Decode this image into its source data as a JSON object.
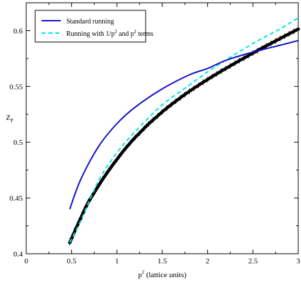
{
  "chart_data": {
    "type": "line",
    "title": "",
    "xlabel": {
      "base": "p",
      "sup": "2",
      "rest": " (lattice units)"
    },
    "ylabel": {
      "base": "Z",
      "sub": "P"
    },
    "xlim": [
      0,
      3
    ],
    "ylim": [
      0.4,
      0.625
    ],
    "x_ticks": [
      0,
      0.5,
      1,
      1.5,
      2,
      2.5,
      3
    ],
    "x_tick_labels": [
      "0",
      "0.5",
      "1",
      "1.5",
      "2",
      "2.5",
      "3"
    ],
    "y_ticks": [
      0.4,
      0.45,
      0.5,
      0.55,
      0.6
    ],
    "y_tick_labels": [
      "0.4",
      "0.45",
      "0.5",
      "0.55",
      "0.6"
    ],
    "grid": false,
    "legend_position": "top-left",
    "series": [
      {
        "name": "Standard running",
        "legend_label": "Standard running",
        "style": "solid",
        "color": "#1010c8",
        "x": [
          0.48,
          0.6,
          0.8,
          1.0,
          1.2,
          1.5,
          1.8,
          2.0,
          2.2,
          2.5,
          2.8,
          3.0
        ],
        "y": [
          0.44,
          0.4664,
          0.4964,
          0.5166,
          0.5313,
          0.5478,
          0.5604,
          0.5661,
          0.5733,
          0.5808,
          0.5869,
          0.5911
        ]
      },
      {
        "name": "Running with 1/p2 and p2 terms",
        "legend_label": {
          "pre": "Running with 1/p",
          "sup1": "2",
          "mid": " and p",
          "sup2": "2",
          "post": " terms"
        },
        "style": "dashed",
        "color": "#00e5e5",
        "x": [
          0.48,
          0.6,
          0.8,
          1.0,
          1.2,
          1.5,
          1.8,
          2.0,
          2.2,
          2.5,
          2.8,
          3.0
        ],
        "y": [
          0.41,
          0.4292,
          0.4659,
          0.4906,
          0.5094,
          0.5334,
          0.5512,
          0.5631,
          0.5735,
          0.5885,
          0.6016,
          0.6115
        ]
      },
      {
        "name": "lattice data",
        "style": "markers",
        "color": "#000000",
        "x": [
          0.48,
          0.5,
          0.52,
          0.55,
          0.58,
          0.6,
          0.63,
          0.66,
          0.7,
          0.73,
          0.76,
          0.8,
          0.83,
          0.86,
          0.9,
          0.93,
          0.96,
          1.0,
          1.05,
          1.1,
          1.15,
          1.2,
          1.25,
          1.3,
          1.35,
          1.4,
          1.45,
          1.5,
          1.55,
          1.6,
          1.65,
          1.7,
          1.75,
          1.8,
          1.85,
          1.9,
          1.95,
          2.0,
          2.05,
          2.1,
          2.15,
          2.2,
          2.25,
          2.3,
          2.35,
          2.4,
          2.45,
          2.5,
          2.55,
          2.6,
          2.65,
          2.7,
          2.75,
          2.8,
          2.85,
          2.9,
          2.95,
          3.0
        ],
        "y": [
          0.41,
          0.4136,
          0.4173,
          0.4229,
          0.4281,
          0.4317,
          0.4371,
          0.4423,
          0.4483,
          0.4522,
          0.4562,
          0.4613,
          0.4652,
          0.4688,
          0.4735,
          0.4769,
          0.4803,
          0.4845,
          0.4899,
          0.4949,
          0.4996,
          0.5041,
          0.5082,
          0.5124,
          0.5164,
          0.52,
          0.5236,
          0.5272,
          0.5305,
          0.5337,
          0.5368,
          0.5398,
          0.5428,
          0.5456,
          0.5484,
          0.551,
          0.5537,
          0.5562,
          0.5588,
          0.5612,
          0.5637,
          0.566,
          0.5684,
          0.5707,
          0.5731,
          0.5753,
          0.5776,
          0.5799,
          0.5821,
          0.5843,
          0.5865,
          0.5886,
          0.5908,
          0.5929,
          0.5951,
          0.5972,
          0.5993,
          0.6014
        ]
      }
    ]
  }
}
